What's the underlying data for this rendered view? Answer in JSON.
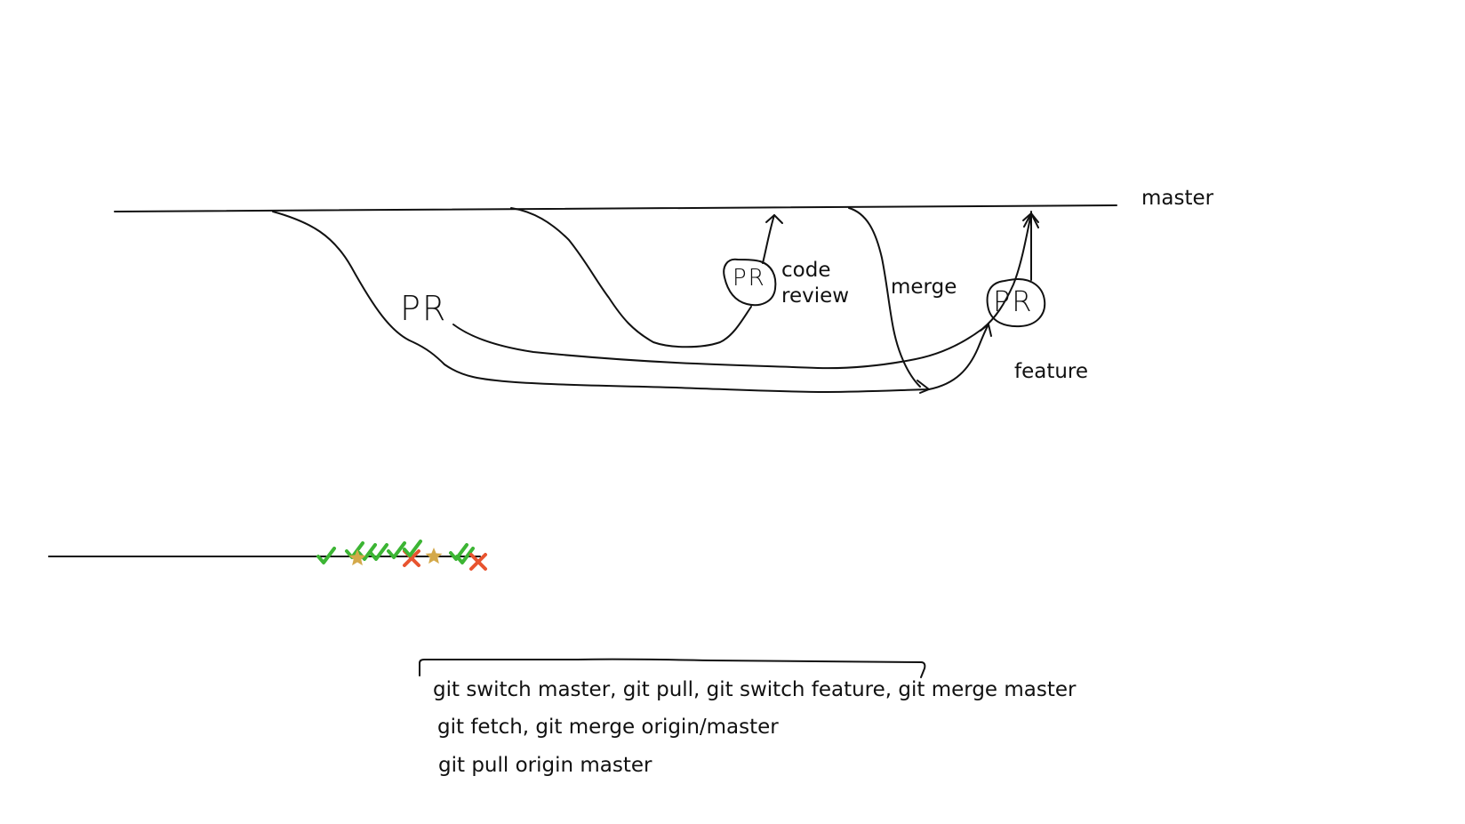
{
  "labels": {
    "master": "master",
    "code_review_line1": "code",
    "code_review_line2": "review",
    "merge": "merge",
    "feature": "feature",
    "pr_handwritten": "PR",
    "pr_bubble_1": "PR",
    "pr_bubble_2": "PR"
  },
  "commands": [
    "git switch master, git pull, git switch feature, git merge master",
    "git fetch, git merge origin/master",
    "git pull origin master"
  ],
  "markers": [
    {
      "type": "check",
      "color": "#3cb534"
    },
    {
      "type": "check",
      "color": "#3cb534"
    },
    {
      "type": "check",
      "color": "#3cb534"
    },
    {
      "type": "star",
      "color": "#d4a94a"
    },
    {
      "type": "check",
      "color": "#3cb534"
    },
    {
      "type": "check",
      "color": "#3cb534"
    },
    {
      "type": "cross",
      "color": "#e8542f"
    },
    {
      "type": "check",
      "color": "#3cb534"
    },
    {
      "type": "star",
      "color": "#d4a94a"
    },
    {
      "type": "check",
      "color": "#3cb534"
    },
    {
      "type": "check",
      "color": "#3cb534"
    },
    {
      "type": "cross",
      "color": "#e8542f"
    }
  ],
  "colors": {
    "ink": "#111111",
    "check": "#3cb534",
    "star": "#d4a94a",
    "cross": "#e8542f"
  }
}
